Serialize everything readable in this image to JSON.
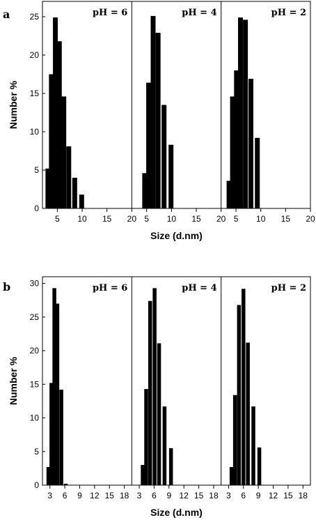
{
  "chart_data": [
    {
      "type": "bar",
      "panel_label": "a",
      "xlabel": "Size (d.nm)",
      "ylabel": "Number %",
      "ylim": [
        0,
        27
      ],
      "yticks": [
        0,
        5,
        10,
        15,
        20,
        25
      ],
      "xlim": [
        2,
        20
      ],
      "xticks": [
        5,
        10,
        15,
        20
      ],
      "first_tick_labels": [
        "5",
        "10",
        "15",
        "20"
      ],
      "subplots": [
        {
          "title": "pH = 6",
          "x": [
            3.1,
            3.8,
            4.6,
            5.4,
            6.3,
            7.3,
            8.5,
            9.9
          ],
          "y": [
            5.2,
            17.5,
            24.9,
            21.8,
            14.6,
            8.1,
            4.0,
            1.8
          ]
        },
        {
          "title": "pH = 4",
          "x": [
            4.6,
            5.4,
            6.3,
            7.3,
            8.5,
            9.9
          ],
          "y": [
            4.6,
            16.4,
            25.1,
            22.9,
            13.5,
            8.3
          ]
        },
        {
          "title": "pH = 2",
          "x": [
            3.6,
            4.3,
            5.1,
            5.9,
            6.9,
            8.0,
            9.3,
            10.8
          ],
          "y": [
            3.6,
            14.6,
            18.0,
            24.9,
            24.6,
            16.9,
            9.2,
            0
          ]
        }
      ]
    },
    {
      "type": "bar",
      "panel_label": "b",
      "xlabel": "Size (d.nm)",
      "ylabel": "Number %",
      "ylim": [
        0,
        31
      ],
      "yticks": [
        0,
        5,
        10,
        15,
        20,
        25,
        30
      ],
      "xlim": [
        1.5,
        19.5
      ],
      "xticks": [
        3,
        6,
        9,
        12,
        15,
        18
      ],
      "first_tick_labels": [
        "3",
        "6",
        "9",
        "12",
        "15",
        "18"
      ],
      "subplots": [
        {
          "title": "pH = 6",
          "x": [
            2.7,
            3.3,
            3.9,
            4.5,
            5.3,
            6.2
          ],
          "y": [
            2.7,
            15.2,
            29.3,
            27.0,
            14.2,
            0.2
          ]
        },
        {
          "title": "pH = 4",
          "x": [
            3.7,
            4.4,
            5.2,
            6.1,
            7.0,
            8.1,
            9.4
          ],
          "y": [
            3.0,
            14.3,
            27.4,
            29.3,
            21.1,
            11.7,
            5.5
          ]
        },
        {
          "title": "pH = 2",
          "x": [
            3.6,
            4.3,
            5.1,
            6.0,
            6.9,
            8.0,
            9.2,
            10.7
          ],
          "y": [
            2.7,
            13.4,
            26.8,
            29.2,
            21.2,
            11.7,
            5.6,
            0
          ]
        }
      ]
    }
  ]
}
